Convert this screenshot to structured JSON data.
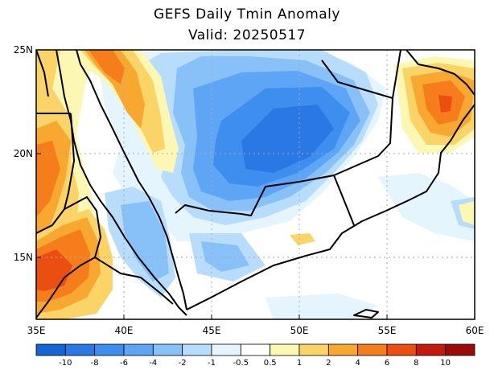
{
  "title": "GEFS Daily Tmin Anomaly",
  "subtitle": "Valid: 20250517",
  "map": {
    "lon_range": [
      35,
      60
    ],
    "lat_range": [
      12,
      25
    ],
    "lon_ticks": [
      {
        "value": 35,
        "label": "35E"
      },
      {
        "value": 40,
        "label": "40E"
      },
      {
        "value": 45,
        "label": "45E"
      },
      {
        "value": 50,
        "label": "50E"
      },
      {
        "value": 55,
        "label": "55E"
      },
      {
        "value": 60,
        "label": "60E"
      }
    ],
    "lat_ticks": [
      {
        "value": 25,
        "label": "25N"
      },
      {
        "value": 20,
        "label": "20N"
      },
      {
        "value": 15,
        "label": "15N"
      }
    ],
    "gridlines": "dotted",
    "variable": "Tmin anomaly"
  },
  "colorbar": {
    "colors": [
      "#1565d6",
      "#2a78e4",
      "#3e8ef0",
      "#5ea6f5",
      "#88c0f8",
      "#b8dcfb",
      "#e4f5fd",
      "#ffffff",
      "#fdf7b4",
      "#fbd468",
      "#f8a830",
      "#f57d1c",
      "#ea4e10",
      "#c41a0c",
      "#9c0b08"
    ],
    "labels": [
      "-10",
      "-8",
      "-6",
      "-4",
      "-2",
      "-1",
      "-0.5",
      "0.5",
      "1",
      "2",
      "4",
      "6",
      "8",
      "10"
    ]
  }
}
